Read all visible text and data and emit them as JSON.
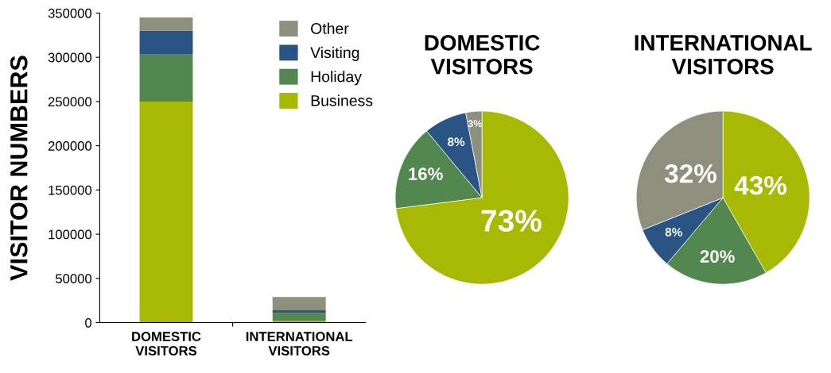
{
  "chart_data": [
    {
      "type": "bar",
      "stacked": true,
      "ylabel": "VISITOR NUMBERS",
      "categories": [
        "DOMESTIC\nVISITORS",
        "INTERNATIONAL\nVISITORS"
      ],
      "ylim": [
        0,
        350000
      ],
      "yticks": [
        0,
        50000,
        100000,
        150000,
        200000,
        250000,
        300000,
        350000
      ],
      "legend": "top right",
      "grid": false,
      "series": [
        {
          "name": "Business",
          "color": "#a8b904",
          "values": [
            250000,
            2000
          ]
        },
        {
          "name": "Holiday",
          "color": "#528850",
          "values": [
            53000,
            9000
          ]
        },
        {
          "name": "Visiting",
          "color": "#2a5483",
          "values": [
            27000,
            3000
          ]
        },
        {
          "name": "Other",
          "color": "#8f8f7e",
          "values": [
            15000,
            15000
          ]
        }
      ]
    },
    {
      "type": "pie",
      "title": "DOMESTIC\nVISITORS",
      "categories": [
        null,
        null,
        null,
        null
      ],
      "values": [
        73,
        16,
        8,
        3
      ],
      "colors": [
        "#a8b904",
        "#528850",
        "#2a5483",
        "#8f8f7e"
      ],
      "value_labels": [
        "73%",
        "16%",
        "8%",
        "3%"
      ]
    },
    {
      "type": "pie",
      "title": "INTERNATIONAL\nVISITORS",
      "categories": [
        null,
        null,
        null,
        null
      ],
      "values": [
        43,
        20,
        8,
        32
      ],
      "colors": [
        "#a8b904",
        "#528850",
        "#2a5483",
        "#8f8f7e"
      ],
      "value_labels": [
        "43%",
        "20%",
        "8%",
        "32%"
      ]
    }
  ]
}
